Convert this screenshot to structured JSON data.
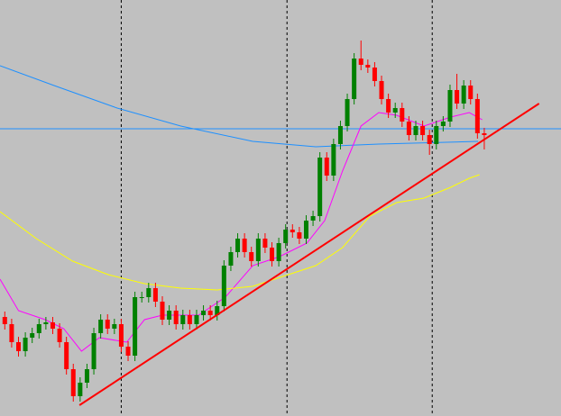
{
  "chart_data": {
    "type": "candlestick",
    "xlim": [
      -0.7,
      81.2
    ],
    "ylim": [
      0,
      462
    ],
    "xticks": [
      17,
      41.2,
      62.4
    ],
    "grid": true,
    "up_color": "#008000",
    "down_color": "#ff0000",
    "open": [
      110,
      102,
      82,
      72,
      87,
      92,
      102,
      104,
      97,
      82,
      52,
      22,
      37,
      52,
      92,
      107,
      97,
      102,
      77,
      67,
      132,
      132,
      142,
      127,
      107,
      117,
      102,
      112,
      102,
      112,
      117,
      112,
      122,
      167,
      182,
      197,
      182,
      172,
      197,
      187,
      172,
      192,
      207,
      204,
      197,
      217,
      222,
      287,
      267,
      302,
      322,
      352,
      397,
      390,
      387,
      372,
      352,
      337,
      342,
      327,
      312,
      322,
      312,
      302,
      322,
      327,
      362,
      347,
      367,
      352,
      314
    ],
    "close": [
      102,
      82,
      72,
      87,
      92,
      102,
      104,
      97,
      82,
      52,
      22,
      37,
      52,
      92,
      107,
      97,
      102,
      77,
      67,
      132,
      132,
      142,
      127,
      107,
      117,
      102,
      112,
      102,
      112,
      117,
      112,
      122,
      167,
      182,
      197,
      182,
      172,
      197,
      187,
      172,
      192,
      207,
      204,
      197,
      217,
      222,
      287,
      267,
      302,
      322,
      352,
      397,
      390,
      387,
      372,
      352,
      337,
      342,
      327,
      312,
      322,
      312,
      302,
      322,
      327,
      362,
      347,
      367,
      352,
      314,
      312
    ],
    "high": [
      116,
      108,
      88,
      93,
      98,
      108,
      110,
      110,
      103,
      88,
      58,
      43,
      58,
      98,
      113,
      113,
      108,
      108,
      83,
      138,
      138,
      148,
      148,
      133,
      123,
      123,
      118,
      118,
      118,
      123,
      123,
      128,
      173,
      188,
      203,
      203,
      188,
      203,
      203,
      193,
      198,
      213,
      213,
      210,
      223,
      228,
      293,
      293,
      308,
      328,
      358,
      403,
      417,
      396,
      393,
      378,
      358,
      348,
      348,
      333,
      328,
      328,
      318,
      328,
      333,
      368,
      380,
      373,
      373,
      358,
      320
    ],
    "low": [
      96,
      76,
      66,
      66,
      81,
      86,
      96,
      91,
      76,
      46,
      16,
      16,
      31,
      46,
      86,
      91,
      91,
      71,
      61,
      61,
      126,
      126,
      121,
      101,
      101,
      96,
      96,
      96,
      96,
      106,
      106,
      106,
      116,
      161,
      176,
      176,
      166,
      166,
      181,
      166,
      166,
      186,
      198,
      191,
      191,
      211,
      216,
      261,
      261,
      296,
      316,
      346,
      384,
      381,
      366,
      346,
      331,
      331,
      321,
      306,
      306,
      306,
      290,
      296,
      316,
      321,
      341,
      341,
      346,
      308,
      296
    ],
    "lines": [
      {
        "color": "#1e90ff",
        "x": [
          -0.7,
          7.2,
          16.4,
          25.7,
          36.2,
          45.4,
          54.6,
          69.1
        ],
        "values": [
          389,
          367,
          342,
          322,
          305,
          299,
          302,
          305
        ]
      },
      {
        "color": "#ff00ff",
        "x": [
          -0.7,
          2,
          5.9,
          8.6,
          11.2,
          13.8,
          17.8,
          20.4,
          23,
          28.3,
          32.2,
          36.2,
          40.1,
          44.1,
          46.7,
          49.3,
          52,
          54.6,
          57.2,
          61.2,
          65.1,
          67.8,
          69.7
        ],
        "values": [
          152,
          117,
          107,
          97,
          72,
          87,
          82,
          107,
          112,
          112,
          132,
          167,
          177,
          192,
          217,
          272,
          322,
          337,
          334,
          322,
          332,
          337,
          329
        ]
      },
      {
        "color": "#ffff00",
        "x": [
          -0.7,
          4.6,
          9.9,
          15.1,
          20.4,
          25.7,
          31,
          36.2,
          41.4,
          45.4,
          49.3,
          53.3,
          57.2,
          61.2,
          65.1,
          67.8,
          69.3
        ],
        "values": [
          227,
          197,
          172,
          157,
          147,
          142,
          140,
          144,
          157,
          167,
          187,
          222,
          237,
          242,
          254,
          264,
          268
        ]
      }
    ],
    "trendline": {
      "color": "#ff0000",
      "x": [
        10.9,
        78
      ],
      "values": [
        12,
        347
      ]
    },
    "level": {
      "color": "#1e90ff",
      "value": 319
    }
  }
}
